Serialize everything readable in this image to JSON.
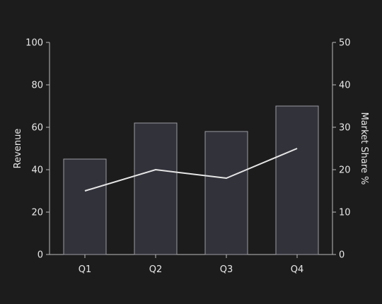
{
  "chart_data": {
    "type": "bar",
    "categories": [
      "Q1",
      "Q2",
      "Q3",
      "Q4"
    ],
    "series": [
      {
        "axis": "left",
        "kind": "bar",
        "values": [
          45,
          62,
          58,
          70
        ]
      },
      {
        "axis": "right",
        "kind": "line",
        "values": [
          15,
          20,
          18,
          25
        ]
      }
    ],
    "ylabel": "Revenue",
    "y2label": "Market Share %",
    "ylim": [
      0,
      100
    ],
    "y2lim": [
      0,
      50
    ],
    "yticks": [
      0,
      20,
      40,
      60,
      80,
      100
    ],
    "y2ticks": [
      0,
      10,
      20,
      30,
      40,
      50
    ],
    "grid": false,
    "colors": {
      "background": "#1c1c1c",
      "bar_fill": "#32323b",
      "bar_edge": "#9a9aa2",
      "line": "#e6e6e6",
      "text": "#e8e8e8"
    }
  }
}
